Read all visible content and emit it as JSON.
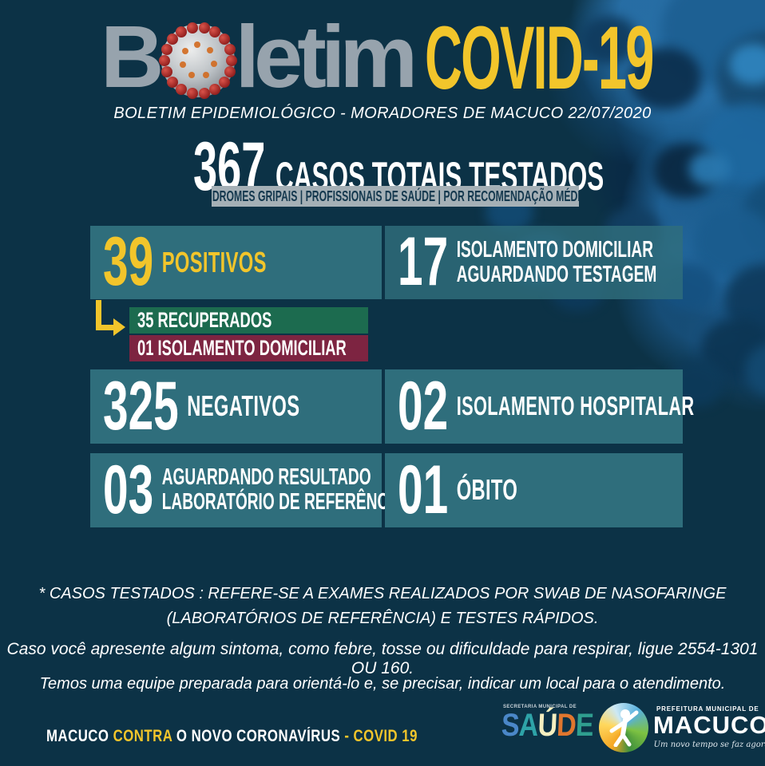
{
  "header": {
    "title_part1": "B",
    "title_part2": "letim",
    "title_accent": "COVID-19",
    "subtitle": "BOLETIM EPIDEMIOLÓGICO - MORADORES DE MACUCO 22/07/2020"
  },
  "totals": {
    "value": "367",
    "label": "CASOS TOTAIS TESTADOS",
    "criteria": "SÍNDROMES GRIPAIS  |  PROFISSIONAIS DE SAÚDE  |  POR RECOMENDAÇÃO MÉDICA"
  },
  "cards": {
    "positivos": {
      "value": "39",
      "label": "POSITIVOS"
    },
    "recuperados": {
      "value_label": "35 RECUPERADOS"
    },
    "isolamento_domiciliar_positivo": {
      "value_label": "01 ISOLAMENTO DOMICILIAR"
    },
    "aguardando_testagem": {
      "value": "17",
      "label_line1": "ISOLAMENTO DOMICILIAR",
      "label_line2": "AGUARDANDO TESTAGEM"
    },
    "negativos": {
      "value": "325",
      "label": "NEGATIVOS"
    },
    "isolamento_hospitalar": {
      "value": "02",
      "label": "ISOLAMENTO HOSPITALAR"
    },
    "aguardando_resultado": {
      "value": "03",
      "label_line1": "AGUARDANDO RESULTADO",
      "label_line2": "LABORATÓRIO DE REFERÊNCIA"
    },
    "obito": {
      "value": "01",
      "label": "ÓBITO"
    }
  },
  "notes": {
    "testados_line1": "* CASOS TESTADOS : REFERE-SE A EXAMES REALIZADOS POR SWAB DE NASOFARINGE",
    "testados_line2": "(LABORATÓRIOS DE REFERÊNCIA)  E  TESTES RÁPIDOS.",
    "sintomas": "Caso você apresente algum sintoma, como febre, tosse ou dificuldade para respirar, ligue 2554-1301 OU 160.",
    "equipe": "Temos uma equipe preparada para orientá-lo e, se precisar, indicar um local para o atendimento."
  },
  "footer": {
    "campaign": [
      {
        "text": "MACUCO ",
        "color": "#ffffff"
      },
      {
        "text": "CONTRA ",
        "color": "#f2c52b"
      },
      {
        "text": "O NOVO CORONAVÍRUS ",
        "color": "#ffffff"
      },
      {
        "text": "- COVID 19",
        "color": "#f2c52b"
      }
    ],
    "saude_logo": {
      "small_text": "SECRETARIA MUNICIPAL DE",
      "letters": [
        {
          "ch": "S",
          "color": "#4a87c8"
        },
        {
          "ch": "A",
          "color": "#2ea3a8"
        },
        {
          "ch": "Ú",
          "color": "#f5efc0"
        },
        {
          "ch": "D",
          "color": "#e0762e"
        },
        {
          "ch": "E",
          "color": "#2f9e8f"
        }
      ]
    },
    "macuco_logo": {
      "small_text": "PREFEITURA MUNICIPAL DE",
      "name": "MACUCO",
      "tagline": "Um novo tempo se faz agora"
    }
  },
  "colors": {
    "background": "#0c3246",
    "card_teal": "#2f6e7c",
    "accent_yellow": "#f2c52b",
    "recovered_green": "#1c6b4f",
    "isolation_maroon": "#7d2441",
    "title_gray": "#97a3ad",
    "criteria_bar_gray": "#a5b0b6",
    "virus_blue": "#1e68a0"
  }
}
